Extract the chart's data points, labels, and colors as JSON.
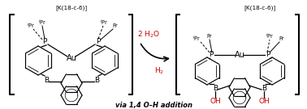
{
  "background_color": "#ffffff",
  "left_bracket_label": "[K(18-c-6)]",
  "right_bracket_label": "[K(18-c-6)]",
  "arrow_reagent_top": "2 H₂O",
  "arrow_reagent_bottom": "H₂",
  "arrow_reagent_color": "#cc0000",
  "bottom_label": "via 1,4 O–H addition",
  "fig_width": 3.78,
  "fig_height": 1.35,
  "dpi": 100
}
